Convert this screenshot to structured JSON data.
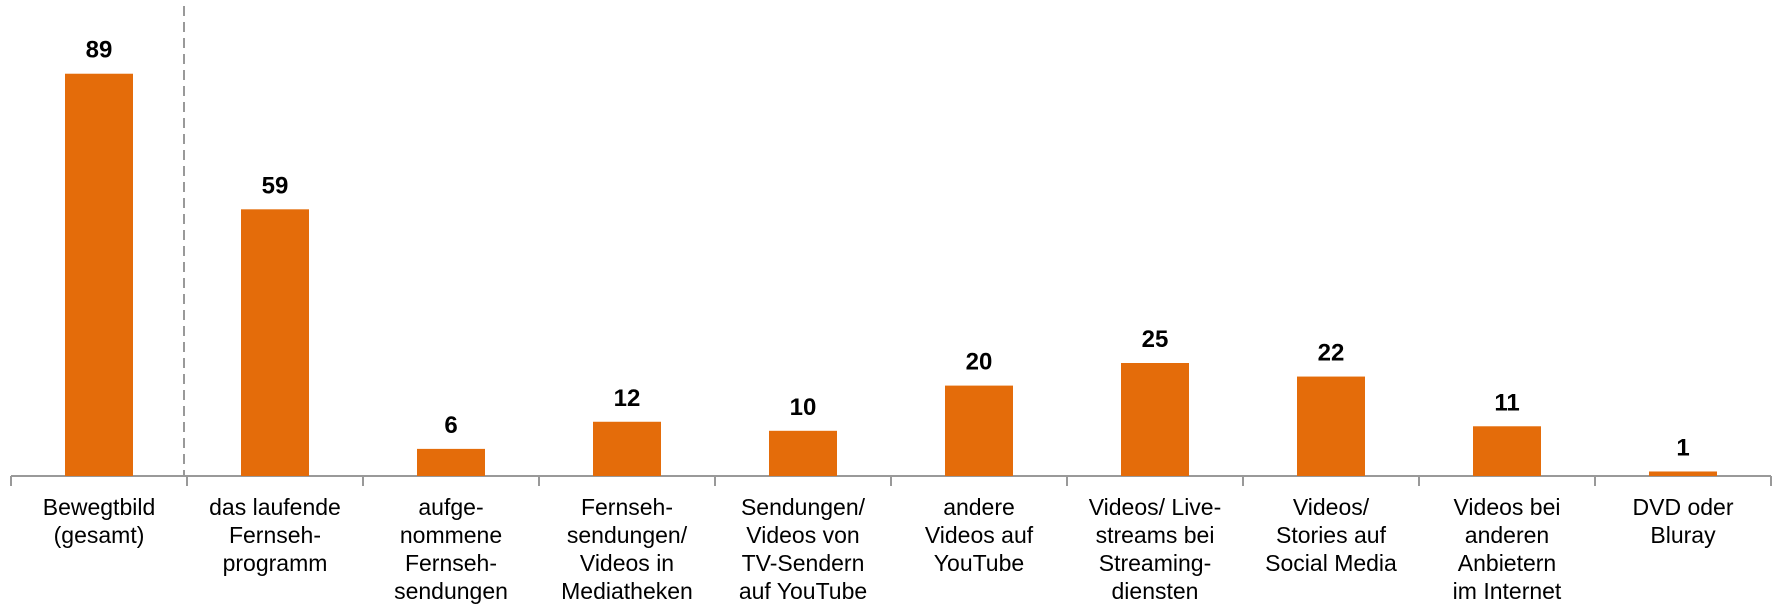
{
  "chart_data": {
    "type": "bar",
    "categories": [
      "Bewegtbild\n(gesamt)",
      "das laufende\nFernseh-\nprogramm",
      "aufge-\nnommene\nFernseh-\nsendungen",
      "Fernseh-\nsendungen/\nVideos in\nMediatheken",
      "Sendungen/\nVideos von\nTV-Sendern\nauf YouTube",
      "andere\nVideos auf\nYouTube",
      "Videos/ Live-\nstreams bei\nStreaming-\ndiensten",
      "Videos/\nStories auf\nSocial Media",
      "Videos bei\nanderen\nAnbietern\nim Internet",
      "DVD oder\nBluray"
    ],
    "values": [
      89,
      59,
      6,
      12,
      10,
      20,
      25,
      22,
      11,
      1
    ],
    "color": "#e46c0a",
    "ylim": [
      0,
      100
    ]
  }
}
